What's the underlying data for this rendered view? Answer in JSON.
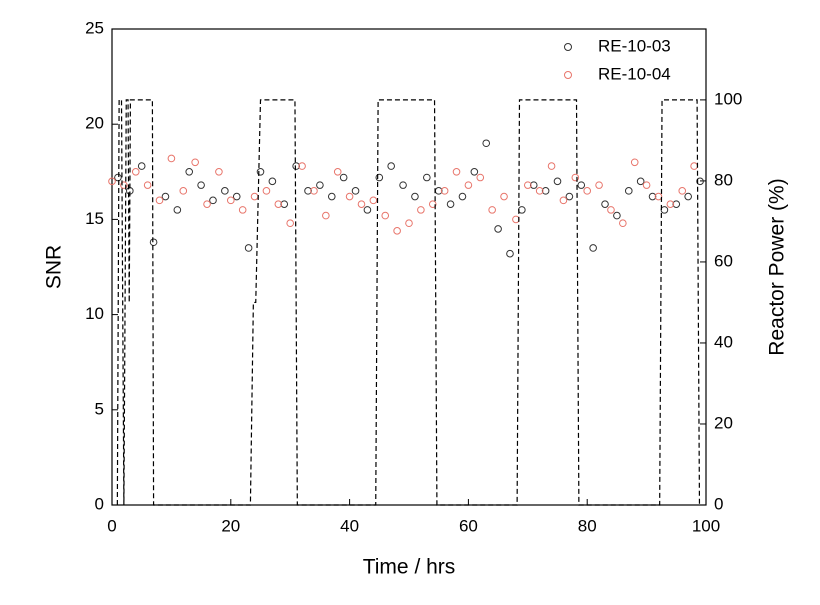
{
  "chart_data": {
    "type": "scatter",
    "xlabel": "Time / hrs",
    "ylabel": "SNR",
    "y2label": "Reactor Power (%)",
    "xlim": [
      0,
      100
    ],
    "xticks": [
      0,
      20,
      40,
      60,
      80,
      100
    ],
    "ylim": [
      0,
      25
    ],
    "yticks": [
      0,
      5,
      10,
      15,
      20,
      25
    ],
    "y2lim": [
      0,
      117.5
    ],
    "y2ticks": [
      0,
      20,
      40,
      60,
      80,
      100
    ],
    "legend": "upper-right",
    "series": [
      {
        "name": "RE-10-03",
        "color": "#333333",
        "style": "open-circle",
        "x": [
          1,
          3,
          5,
          7,
          9,
          11,
          13,
          15,
          17,
          19,
          21,
          23,
          25,
          27,
          29,
          31,
          33,
          35,
          37,
          39,
          41,
          43,
          45,
          47,
          49,
          51,
          53,
          55,
          57,
          59,
          61,
          63,
          65,
          67,
          69,
          71,
          73,
          75,
          77,
          79,
          81,
          83,
          85,
          87,
          89,
          91,
          93,
          95,
          97,
          99
        ],
        "values": [
          17.2,
          16.5,
          17.8,
          13.8,
          16.2,
          15.5,
          17.5,
          16.8,
          16.0,
          16.5,
          16.2,
          13.5,
          17.5,
          17.0,
          15.8,
          17.8,
          16.5,
          16.8,
          16.2,
          17.2,
          16.5,
          15.5,
          17.2,
          17.8,
          16.8,
          16.2,
          17.2,
          16.5,
          15.8,
          16.2,
          17.5,
          19.0,
          14.5,
          13.2,
          15.5,
          16.8,
          16.5,
          17.0,
          16.2,
          16.8,
          13.5,
          15.8,
          15.2,
          16.5,
          17.0,
          16.2,
          15.5,
          15.8,
          16.2,
          17.0
        ]
      },
      {
        "name": "RE-10-04",
        "color": "#e8756b",
        "style": "open-circle",
        "x": [
          0,
          2,
          4,
          6,
          8,
          10,
          12,
          14,
          16,
          18,
          20,
          22,
          24,
          26,
          28,
          30,
          32,
          34,
          36,
          38,
          40,
          42,
          44,
          46,
          48,
          50,
          52,
          54,
          56,
          58,
          60,
          62,
          64,
          66,
          68,
          70,
          72,
          74,
          76,
          78,
          80,
          82,
          84,
          86,
          88,
          90,
          92,
          94,
          96,
          98
        ],
        "values": [
          17.0,
          16.8,
          17.5,
          16.8,
          16.0,
          18.2,
          16.5,
          18.0,
          15.8,
          17.5,
          16.0,
          15.5,
          16.2,
          16.5,
          15.8,
          14.8,
          17.8,
          16.5,
          15.2,
          17.5,
          16.2,
          15.8,
          16.0,
          15.2,
          14.4,
          14.8,
          15.5,
          15.8,
          16.5,
          17.5,
          16.8,
          17.2,
          15.5,
          16.2,
          15.0,
          16.8,
          16.5,
          17.8,
          16.0,
          17.2,
          16.5,
          16.8,
          15.5,
          14.8,
          18.0,
          16.8,
          16.2,
          15.8,
          16.5,
          17.8
        ]
      },
      {
        "color": "#000000",
        "style": "dashed-line",
        "axis": "y2",
        "x": [
          0.9,
          1.2,
          1.6,
          2.0,
          2.4,
          2.7,
          2.9,
          3.1,
          6.8,
          7.0,
          23.3,
          23.8,
          24.2,
          25,
          30.8,
          31.2,
          44.4,
          44.8,
          54.3,
          54.7,
          68.2,
          68.6,
          78.2,
          78.6,
          92.2,
          92.6,
          98.5,
          98.9
        ],
        "values": [
          0,
          100,
          100,
          0,
          100,
          100,
          50,
          100,
          100,
          0,
          0,
          50,
          50,
          100,
          100,
          0,
          0,
          100,
          100,
          0,
          0,
          100,
          100,
          0,
          0,
          100,
          100,
          0
        ]
      }
    ]
  }
}
